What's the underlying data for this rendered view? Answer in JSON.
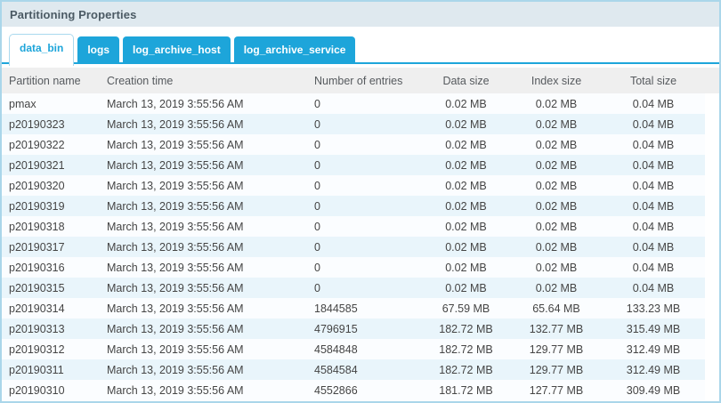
{
  "panel": {
    "title": "Partitioning Properties"
  },
  "tabs": [
    {
      "label": "data_bin",
      "active": true
    },
    {
      "label": "logs",
      "active": false
    },
    {
      "label": "log_archive_host",
      "active": false
    },
    {
      "label": "log_archive_service",
      "active": false
    }
  ],
  "table": {
    "columns": [
      "Partition name",
      "Creation time",
      "Number of entries",
      "Data size",
      "Index size",
      "Total size"
    ],
    "rows": [
      [
        "pmax",
        "March 13, 2019 3:55:56 AM",
        "0",
        "0.02 MB",
        "0.02 MB",
        "0.04 MB"
      ],
      [
        "p20190323",
        "March 13, 2019 3:55:56 AM",
        "0",
        "0.02 MB",
        "0.02 MB",
        "0.04 MB"
      ],
      [
        "p20190322",
        "March 13, 2019 3:55:56 AM",
        "0",
        "0.02 MB",
        "0.02 MB",
        "0.04 MB"
      ],
      [
        "p20190321",
        "March 13, 2019 3:55:56 AM",
        "0",
        "0.02 MB",
        "0.02 MB",
        "0.04 MB"
      ],
      [
        "p20190320",
        "March 13, 2019 3:55:56 AM",
        "0",
        "0.02 MB",
        "0.02 MB",
        "0.04 MB"
      ],
      [
        "p20190319",
        "March 13, 2019 3:55:56 AM",
        "0",
        "0.02 MB",
        "0.02 MB",
        "0.04 MB"
      ],
      [
        "p20190318",
        "March 13, 2019 3:55:56 AM",
        "0",
        "0.02 MB",
        "0.02 MB",
        "0.04 MB"
      ],
      [
        "p20190317",
        "March 13, 2019 3:55:56 AM",
        "0",
        "0.02 MB",
        "0.02 MB",
        "0.04 MB"
      ],
      [
        "p20190316",
        "March 13, 2019 3:55:56 AM",
        "0",
        "0.02 MB",
        "0.02 MB",
        "0.04 MB"
      ],
      [
        "p20190315",
        "March 13, 2019 3:55:56 AM",
        "0",
        "0.02 MB",
        "0.02 MB",
        "0.04 MB"
      ],
      [
        "p20190314",
        "March 13, 2019 3:55:56 AM",
        "1844585",
        "67.59 MB",
        "65.64 MB",
        "133.23 MB"
      ],
      [
        "p20190313",
        "March 13, 2019 3:55:56 AM",
        "4796915",
        "182.72 MB",
        "132.77 MB",
        "315.49 MB"
      ],
      [
        "p20190312",
        "March 13, 2019 3:55:56 AM",
        "4584848",
        "182.72 MB",
        "129.77 MB",
        "312.49 MB"
      ],
      [
        "p20190311",
        "March 13, 2019 3:55:56 AM",
        "4584584",
        "182.72 MB",
        "129.77 MB",
        "312.49 MB"
      ],
      [
        "p20190310",
        "March 13, 2019 3:55:56 AM",
        "4552866",
        "181.72 MB",
        "127.77 MB",
        "309.49 MB"
      ]
    ]
  },
  "colors": {
    "panel_border": "#aad6ea",
    "titlebar_bg": "#dfe9ef",
    "titlebar_text": "#4b5a64",
    "tab_blue": "#1da5da",
    "active_tab_border": "#a9d9ee",
    "header_bg": "#efefef",
    "header_text": "#565a5e",
    "stripe_blue": "#e9f5fb",
    "stripe_white": "#fbfdff",
    "cell_text": "#454545"
  }
}
